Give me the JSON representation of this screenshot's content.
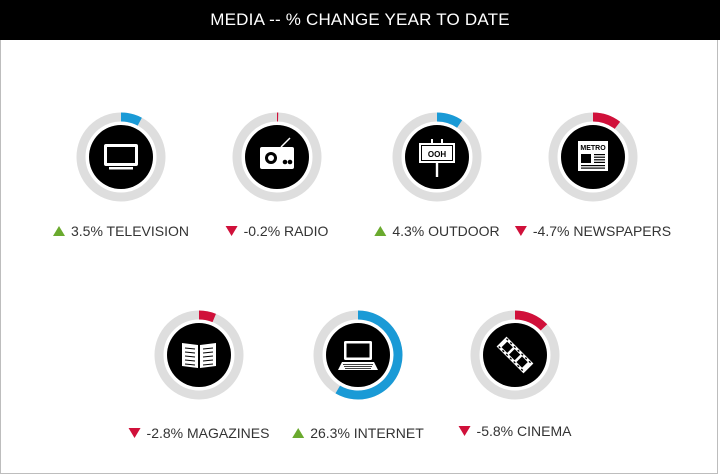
{
  "title": "MEDIA -- % CHANGE YEAR TO DATE",
  "colors": {
    "positive": "#6aaa2e",
    "negative": "#d0103a",
    "ring_positive": "#1a9ad6",
    "ring_negative": "#d0103a",
    "ring_track": "#dedede",
    "badge": "#000000"
  },
  "chart_data": {
    "type": "radial-gauge",
    "title": "MEDIA -- % CHANGE YEAR TO DATE",
    "items": [
      {
        "name": "TELEVISION",
        "value": 3.5,
        "label": "3.5%",
        "direction": "up",
        "icon": "television-icon"
      },
      {
        "name": "RADIO",
        "value": -0.2,
        "label": "-0.2%",
        "direction": "down",
        "icon": "radio-icon"
      },
      {
        "name": "OUTDOOR",
        "value": 4.3,
        "label": "4.3%",
        "direction": "up",
        "icon": "billboard-icon",
        "icon_text": "OOH"
      },
      {
        "name": "NEWSPAPERS",
        "value": -4.7,
        "label": "-4.7%",
        "direction": "down",
        "icon": "newspaper-icon",
        "icon_text": "METRO"
      },
      {
        "name": "MAGAZINES",
        "value": -2.8,
        "label": "-2.8%",
        "direction": "down",
        "icon": "magazine-icon"
      },
      {
        "name": "INTERNET",
        "value": 26.3,
        "label": "26.3%",
        "direction": "up",
        "icon": "laptop-icon"
      },
      {
        "name": "CINEMA",
        "value": -5.8,
        "label": "-5.8%",
        "direction": "down",
        "icon": "film-strip-icon"
      }
    ]
  }
}
